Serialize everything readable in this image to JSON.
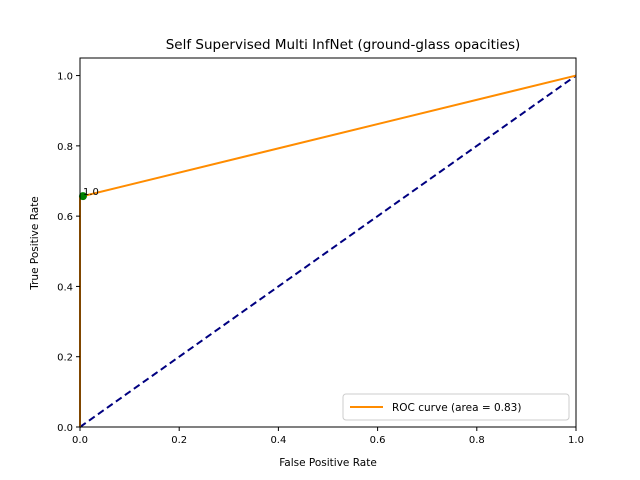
{
  "chart_data": {
    "type": "line",
    "title": "Self Supervised Multi InfNet  (ground-glass opacities)",
    "xlabel": "False Positive Rate",
    "ylabel": "True Positive Rate",
    "xlim": [
      0.0,
      1.0
    ],
    "ylim": [
      0.0,
      1.05
    ],
    "xticks": [
      "0.0",
      "0.2",
      "0.4",
      "0.6",
      "0.8",
      "1.0"
    ],
    "yticks": [
      "0.0",
      "0.2",
      "0.4",
      "0.6",
      "0.8",
      "1.0"
    ],
    "grid": false,
    "legend_position": "lower-right",
    "series": [
      {
        "name": "ROC curve (area = 0.83)",
        "color": "#ff8c00",
        "style": "solid",
        "x": [
          0.0,
          0.0,
          0.0,
          0.006,
          1.0
        ],
        "y": [
          0.0,
          0.0,
          0.655,
          0.657,
          1.0
        ]
      },
      {
        "color": "#000080",
        "style": "dashed",
        "x": [
          0.0,
          1.0
        ],
        "y": [
          0.0,
          1.0
        ]
      }
    ],
    "highlight_point": {
      "x": 0.006,
      "y": 0.657,
      "color": "#008000",
      "label": "1.0"
    }
  }
}
